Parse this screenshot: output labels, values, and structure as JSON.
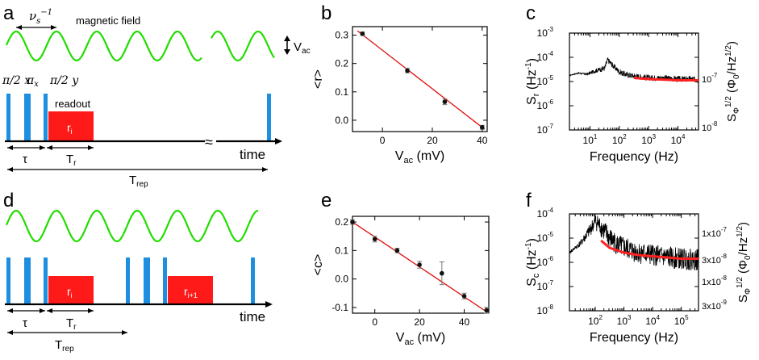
{
  "panel_labels": [
    "a",
    "b",
    "c",
    "d",
    "e",
    "f"
  ],
  "colors": {
    "wave": "#22dd00",
    "pulse": "#1e8ee0",
    "readout": "#ff1a1a",
    "fit": "#e01010",
    "noise": "#000000",
    "noise_smooth": "#ff2020",
    "axis": "#000000"
  },
  "diagram_a": {
    "nu_label": "ν",
    "nu_sub": "s",
    "nu_sup": "−1",
    "field_label": "magnetic field",
    "amp_label": "V",
    "amp_sub": "ac",
    "pulse1_label": "π/2 x",
    "pulse2_label": "π",
    "pulse2_sub": "x",
    "pulse3_label": "π/2 y",
    "readout_label": "readout",
    "r_label": "r",
    "r_sub": "i",
    "tau_label": "τ",
    "tr_label": "T",
    "tr_sub": "r",
    "trep_label": "T",
    "trep_sub": "rep",
    "time_label": "time",
    "break_symbol": "≈"
  },
  "diagram_d": {
    "r1_label": "r",
    "r1_sub": "i",
    "r2_label": "r",
    "r2_sub": "i+1",
    "tau_label": "τ",
    "tr_label": "T",
    "tr_sub": "r",
    "trep_label": "T",
    "trep_sub": "rep",
    "time_label": "time"
  },
  "chart_data": [
    {
      "panel": "b",
      "type": "scatter",
      "title": "",
      "xlabel": "V",
      "xlabel_sub": "ac",
      "xlabel_unit": "(mV)",
      "ylabel": "<r>",
      "xlim": [
        -12,
        42
      ],
      "ylim": [
        -0.04,
        0.33
      ],
      "xticks": [
        0,
        20,
        40
      ],
      "yticks": [
        0.0,
        0.1,
        0.2,
        0.3
      ],
      "ytick_labels": [
        "0.0",
        "0.1",
        "0.2",
        "0.3"
      ],
      "x": [
        -8,
        10,
        25,
        40
      ],
      "y": [
        0.305,
        0.175,
        0.065,
        -0.025
      ],
      "yerr": [
        0.006,
        0.008,
        0.01,
        0.007
      ],
      "fit": {
        "x": [
          -10,
          41
        ],
        "y": [
          0.315,
          -0.032
        ]
      }
    },
    {
      "panel": "e",
      "type": "scatter",
      "title": "",
      "xlabel": "V",
      "xlabel_sub": "ac",
      "xlabel_unit": "(mV)",
      "ylabel": "<c>",
      "xlim": [
        -10,
        51
      ],
      "ylim": [
        -0.12,
        0.22
      ],
      "xticks": [
        0,
        20,
        40
      ],
      "yticks": [
        -0.1,
        0.0,
        0.1,
        0.2
      ],
      "ytick_labels": [
        "-0.1",
        "0.0",
        "0.1",
        "0.2"
      ],
      "x": [
        -10,
        0,
        10,
        20,
        30,
        40,
        50
      ],
      "y": [
        0.2,
        0.14,
        0.1,
        0.05,
        0.02,
        -0.06,
        -0.11
      ],
      "yerr": [
        0.008,
        0.01,
        0.008,
        0.012,
        0.04,
        0.01,
        0.01
      ],
      "fit": {
        "x": [
          -10,
          50
        ],
        "y": [
          0.2,
          -0.115
        ]
      }
    },
    {
      "panel": "c",
      "type": "line",
      "title": "",
      "xlabel": "Frequency (Hz)",
      "ylabel": "S",
      "ylabel_sub": "r",
      "ylabel_unit": "(Hz",
      "ylabel_unit_sup": "-1",
      "ylabel_close": ")",
      "y2label": "S",
      "y2label_sup": "1/2",
      "y2label_sub": "Φ",
      "y2label_unit": "(Φ",
      "y2label_unit_sub": "0",
      "y2label_unit_mid": "/Hz",
      "y2label_unit_sup": "1/2",
      "y2label_close": ")",
      "xscale": "log",
      "yscale": "log",
      "xlim_exp": [
        0.3,
        4.7
      ],
      "ylim_exp": [
        -7,
        -3
      ],
      "xtick_exps": [
        1,
        2,
        3,
        4
      ],
      "xtick_base": "10",
      "ytick_exps": [
        -7,
        -6,
        -5,
        -4,
        -3
      ],
      "ytick_base": "10",
      "y2ticks": [
        {
          "base": "10",
          "exp": "-7",
          "at_exp": -4.9
        },
        {
          "base": "10",
          "exp": "-8",
          "at_exp": -6.9
        }
      ],
      "series": [
        {
          "name": "raw spectrum",
          "logx": [
            0.3,
            0.6,
            0.9,
            1.2,
            1.5,
            1.6,
            1.75,
            2.0,
            2.2,
            2.4,
            2.7,
            3.0,
            3.5,
            4.0,
            4.5,
            4.7
          ],
          "logy": [
            -4.75,
            -4.65,
            -4.7,
            -4.55,
            -4.45,
            -4.1,
            -4.3,
            -4.6,
            -4.7,
            -4.75,
            -4.8,
            -4.85,
            -4.85,
            -4.9,
            -4.9,
            -4.95
          ]
        },
        {
          "name": "smoothed",
          "logx": [
            2.5,
            3.0,
            3.5,
            4.0,
            4.5,
            4.7
          ],
          "logy": [
            -4.85,
            -4.9,
            -4.92,
            -4.95,
            -4.95,
            -4.95
          ]
        }
      ]
    },
    {
      "panel": "f",
      "type": "line",
      "title": "",
      "xlabel": "Frequency (Hz)",
      "ylabel": "S",
      "ylabel_sub": "c",
      "ylabel_unit": "(Hz",
      "ylabel_unit_sup": "-1",
      "ylabel_close": ")",
      "y2label": "S",
      "y2label_sup": "1/2",
      "y2label_sub": "Φ",
      "y2label_unit": "(Φ",
      "y2label_unit_sub": "0",
      "y2label_unit_mid": "/Hz",
      "y2label_unit_sup": "1/2",
      "y2label_close": ")",
      "xscale": "log",
      "yscale": "log",
      "xlim_exp": [
        1.1,
        5.6
      ],
      "ylim_exp": [
        -8,
        -4
      ],
      "xtick_exps": [
        2,
        3,
        4,
        5
      ],
      "xtick_base": "10",
      "ytick_exps": [
        -8,
        -7,
        -6,
        -5,
        -4
      ],
      "ytick_base": "10",
      "y2ticks": [
        {
          "label": "1x10",
          "exp": "-7",
          "at_exp": -4.8
        },
        {
          "label": "3x10",
          "exp": "-8",
          "at_exp": -5.9
        },
        {
          "label": "1x10",
          "exp": "-8",
          "at_exp": -6.8
        },
        {
          "label": "3x10",
          "exp": "-9",
          "at_exp": -7.8
        }
      ],
      "series": [
        {
          "name": "raw spectrum",
          "logx": [
            1.1,
            1.5,
            1.8,
            2.0,
            2.1,
            2.3,
            2.5,
            2.8,
            3.0,
            3.5,
            4.0,
            4.5,
            5.0,
            5.5,
            5.6
          ],
          "logy": [
            -5.6,
            -5.2,
            -4.7,
            -4.3,
            -4.4,
            -4.7,
            -5.0,
            -5.3,
            -5.4,
            -5.6,
            -5.7,
            -5.8,
            -5.85,
            -5.9,
            -5.9
          ]
        },
        {
          "name": "smoothed",
          "logx": [
            2.2,
            2.5,
            3.0,
            3.5,
            4.0,
            4.5,
            5.0,
            5.5,
            5.6
          ],
          "logy": [
            -5.1,
            -5.4,
            -5.6,
            -5.7,
            -5.75,
            -5.8,
            -5.85,
            -5.85,
            -5.85
          ]
        }
      ]
    }
  ]
}
